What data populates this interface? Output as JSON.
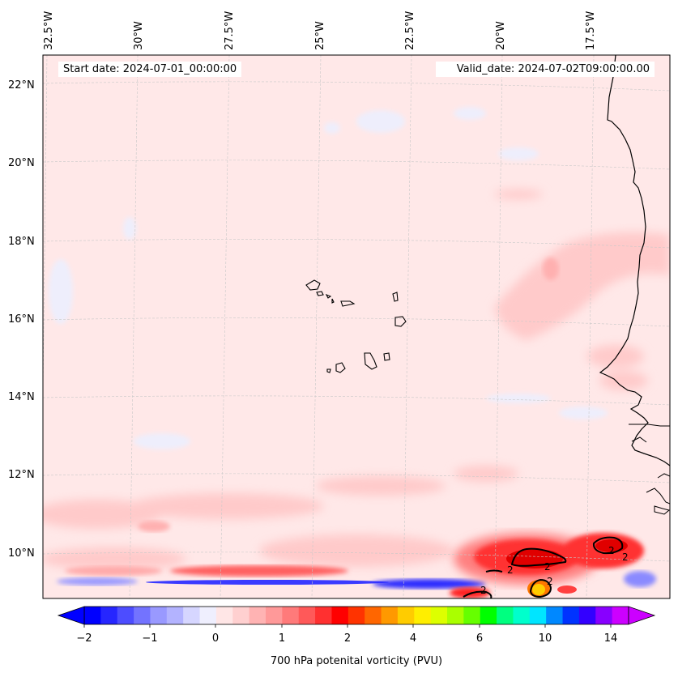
{
  "header": {
    "start_label": "Start date: 2024-07-01_00:00:00",
    "valid_label": "Valid_date: 2024-07-02T09:00:00.00"
  },
  "axes": {
    "lat_labels": [
      "22°N",
      "20°N",
      "18°N",
      "16°N",
      "14°N",
      "12°N",
      "10°N"
    ],
    "lon_labels": [
      "32.5°W",
      "30°W",
      "27.5°W",
      "25°W",
      "22.5°W",
      "20°W",
      "17.5°W"
    ]
  },
  "colorbar": {
    "title": "700 hPa potenital vorticity (PVU)",
    "ticks": [
      "−2",
      "−1",
      "0",
      "1",
      "2",
      "4",
      "6",
      "10",
      "14"
    ],
    "colors": [
      "#0000ff",
      "#2626ff",
      "#4d4dff",
      "#7373ff",
      "#9999ff",
      "#b3b3ff",
      "#d6d6ff",
      "#efeffe",
      "#ffe6e6",
      "#ffd0d0",
      "#ffb3b3",
      "#ff9999",
      "#ff7a7a",
      "#ff5959",
      "#ff3030",
      "#ff0000",
      "#ff3300",
      "#ff6600",
      "#ff9900",
      "#ffcc00",
      "#ffee00",
      "#ddff00",
      "#aaff00",
      "#66ff00",
      "#00ff00",
      "#00ff80",
      "#00ffcc",
      "#00e5ff",
      "#0088ff",
      "#0033ff",
      "#3300ff",
      "#8800ff",
      "#cc00ff"
    ]
  },
  "contour_label": "2"
}
